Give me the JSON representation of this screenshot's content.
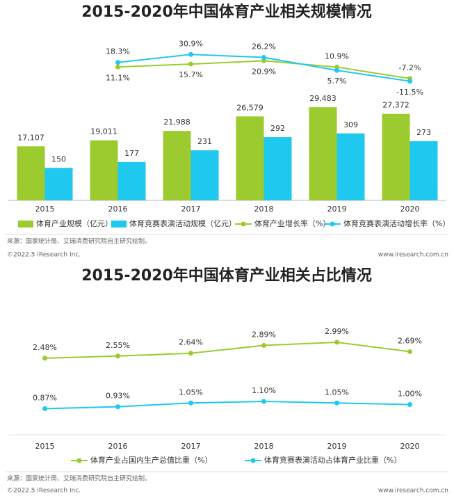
{
  "chart_data": [
    {
      "type": "bar",
      "title": "2015-2020年中国体育产业相关规模情况",
      "categories": [
        "2015",
        "2016",
        "2017",
        "2018",
        "2019",
        "2020"
      ],
      "ylim": [
        0,
        48000
      ],
      "y2lim": [
        0,
        700
      ],
      "y3lim": [
        -200,
        40
      ],
      "series": [
        {
          "name": "体育产业规模（亿元）",
          "type": "bar",
          "color": "#9ccb2f",
          "values": [
            17107,
            19011,
            21988,
            26579,
            29483,
            27372
          ],
          "value_labels": [
            "17,107",
            "19,011",
            "21,988",
            "26,579",
            "29,483",
            "27,372"
          ]
        },
        {
          "name": "体育竞赛表演活动规模（亿元）",
          "type": "bar",
          "axis": "y2",
          "color": "#1ec8ef",
          "values": [
            150,
            177,
            231,
            292,
            309,
            273
          ]
        },
        {
          "name": "体育产业增长率（%）",
          "type": "line",
          "axis": "y3",
          "color": "#9ccb2f",
          "values": [
            null,
            11.1,
            15.7,
            20.9,
            10.9,
            -7.2
          ],
          "value_labels": [
            null,
            "11.1%",
            "15.7%",
            "20.9%",
            "10.9%",
            "-7.2%"
          ]
        },
        {
          "name": "体育竞赛表演活动增长率（%）",
          "type": "line",
          "axis": "y3",
          "color": "#1ec8ef",
          "values": [
            null,
            18.3,
            30.9,
            26.2,
            5.7,
            -11.5
          ],
          "value_labels": [
            null,
            "18.3%",
            "30.9%",
            "26.2%",
            "5.7%",
            "-11.5%"
          ]
        }
      ],
      "source": "来源：国家统计局、艾瑞消费研究院自主研究绘制。",
      "copyright": "©2022.5 iResearch Inc.",
      "website": "www.iresearch.com.cn"
    },
    {
      "type": "line",
      "title": "2015-2020年中国体育产业相关占比情况",
      "categories": [
        "2015",
        "2016",
        "2017",
        "2018",
        "2019",
        "2020"
      ],
      "ylim": [
        0.1,
        3.7
      ],
      "series": [
        {
          "name": "体育产业占国内生产总值比重（%）",
          "color": "#9ccb2f",
          "values": [
            2.48,
            2.55,
            2.64,
            2.89,
            2.99,
            2.69
          ],
          "value_labels": [
            "2.48%",
            "2.55%",
            "2.64%",
            "2.89%",
            "2.99%",
            "2.69%"
          ]
        },
        {
          "name": "体育竞赛表演活动占体育产业比重（%）",
          "color": "#1ec8ef",
          "values": [
            0.87,
            0.93,
            1.05,
            1.1,
            1.05,
            1.0
          ],
          "value_labels": [
            "0.87%",
            "0.93%",
            "1.05%",
            "1.10%",
            "1.05%",
            "1.00%"
          ]
        }
      ],
      "source": "来源：国家统计局、艾瑞消费研究院自主研究绘制。",
      "copyright": "©2022.5 iResearch Inc.",
      "website": "www.iresearch.com.cn"
    }
  ]
}
